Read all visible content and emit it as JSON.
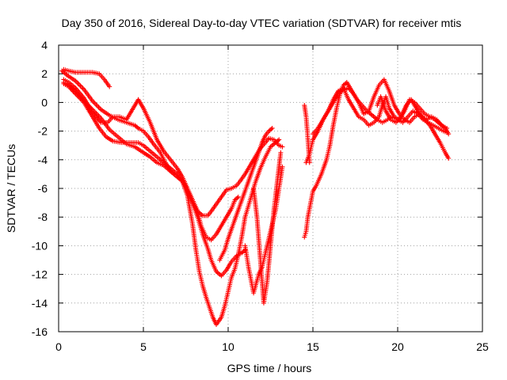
{
  "chart_data": {
    "type": "scatter",
    "title": "Day 350 of 2016, Sidereal Day-to-day VTEC variation (SDTVAR) for receiver mtis",
    "xlabel": "GPS time / hours",
    "ylabel": "SDTVAR / TECUs",
    "xlim": [
      0,
      25
    ],
    "ylim": [
      -16,
      4
    ],
    "xticks": [
      0,
      5,
      10,
      15,
      20,
      25
    ],
    "yticks": [
      4,
      2,
      0,
      -2,
      -4,
      -6,
      -8,
      -10,
      -12,
      -14,
      -16
    ],
    "grid": true,
    "marker": "+",
    "color": "#ff0000",
    "series": [
      {
        "x": [
          0.3,
          0.6,
          1.0,
          1.5,
          2.0,
          2.4,
          2.7,
          3.0
        ],
        "y": [
          2.3,
          2.2,
          2.1,
          2.1,
          2.1,
          2.0,
          1.6,
          1.1
        ]
      },
      {
        "x": [
          0.2,
          0.5,
          1.0,
          1.5,
          2.0,
          2.5,
          3.0,
          3.5,
          4.0,
          4.5,
          4.7,
          5.0,
          5.3,
          5.6,
          6.0,
          6.3,
          6.6,
          7.0,
          7.3,
          7.6,
          7.9,
          8.2,
          8.5,
          8.8,
          9.0,
          9.3,
          9.6,
          9.9,
          10.2,
          10.5,
          10.7,
          11.0,
          11.3,
          11.6,
          11.9,
          12.2,
          12.4,
          12.7,
          13.0,
          13.2
        ],
        "y": [
          2.2,
          1.9,
          1.5,
          0.9,
          0.1,
          -0.5,
          -0.9,
          -1.2,
          -1.4,
          -1.6,
          -1.8,
          -2.0,
          -2.4,
          -2.9,
          -3.5,
          -4.2,
          -4.8,
          -5.2,
          -5.5,
          -6.2,
          -7.0,
          -7.6,
          -7.9,
          -7.9,
          -7.6,
          -7.1,
          -6.6,
          -6.1,
          -6.0,
          -5.8,
          -5.5,
          -5.0,
          -4.4,
          -3.8,
          -3.2,
          -2.8,
          -2.5,
          -2.6,
          -3.0,
          -3.1
        ]
      },
      {
        "x": [
          0.3,
          0.6,
          1.0,
          1.5,
          2.0,
          2.5,
          2.9,
          3.2,
          3.6,
          4.0,
          4.3,
          4.7,
          5.0,
          5.4,
          5.8,
          6.2,
          6.6,
          7.0,
          7.3,
          7.6,
          7.9,
          8.2,
          8.4,
          8.7,
          9.0,
          9.3,
          9.6,
          9.9,
          10.2,
          10.4,
          10.6
        ],
        "y": [
          1.6,
          1.4,
          1.0,
          0.3,
          -0.7,
          -1.4,
          -1.4,
          -1.0,
          -1.0,
          -1.2,
          -0.6,
          0.2,
          -0.4,
          -1.4,
          -2.6,
          -3.4,
          -4.0,
          -4.6,
          -5.2,
          -6.0,
          -6.8,
          -7.6,
          -8.6,
          -9.4,
          -9.6,
          -9.2,
          -8.6,
          -8.0,
          -7.4,
          -6.8,
          -6.6
        ]
      },
      {
        "x": [
          0.3,
          0.6,
          1.0,
          1.5,
          2.0,
          2.5,
          3.0,
          3.5,
          4.0,
          4.5,
          5.0,
          5.4,
          5.8,
          6.2,
          6.6,
          7.0,
          7.3,
          7.6,
          7.9,
          8.2,
          8.5,
          8.8,
          9.0,
          9.3,
          9.6,
          9.9,
          10.2,
          10.5,
          10.8,
          11.0
        ],
        "y": [
          1.4,
          1.2,
          0.8,
          0.1,
          -0.5,
          -1.1,
          -1.9,
          -2.4,
          -2.9,
          -3.1,
          -3.5,
          -3.8,
          -4.2,
          -4.4,
          -4.8,
          -5.2,
          -5.5,
          -6.0,
          -7.0,
          -8.0,
          -9.2,
          -10.2,
          -11.0,
          -11.8,
          -12.1,
          -11.7,
          -11.1,
          -10.7,
          -10.5,
          -10.3
        ]
      },
      {
        "x": [
          0.3,
          0.6,
          1.0,
          1.5,
          2.0,
          2.4,
          2.8,
          3.2,
          3.7,
          4.2,
          4.7,
          5.0,
          5.4,
          5.8,
          6.2,
          6.6,
          7.0,
          7.3,
          7.6,
          7.9,
          8.1,
          8.3,
          8.5,
          8.7,
          8.9,
          9.1,
          9.3,
          9.6,
          9.8,
          10.0,
          10.2,
          10.4,
          10.6,
          10.8,
          11.0,
          11.3,
          11.6,
          11.9,
          12.2,
          12.5,
          12.8,
          13.0
        ],
        "y": [
          1.3,
          1.1,
          0.6,
          0.0,
          -1.0,
          -1.8,
          -2.4,
          -2.7,
          -2.8,
          -2.8,
          -2.8,
          -3.0,
          -3.4,
          -3.8,
          -4.2,
          -4.6,
          -5.0,
          -5.5,
          -6.5,
          -8.5,
          -10.3,
          -11.8,
          -12.8,
          -13.6,
          -14.3,
          -15.0,
          -15.5,
          -15.0,
          -14.2,
          -13.2,
          -12.2,
          -11.6,
          -10.6,
          -9.4,
          -8.0,
          -6.8,
          -5.6,
          -4.6,
          -3.8,
          -3.1,
          -2.8,
          -2.6
        ]
      },
      {
        "x": [
          11.0,
          11.2,
          11.5,
          11.8,
          12.0,
          12.2,
          12.5,
          12.8,
          13.0,
          13.2
        ],
        "y": [
          -10.0,
          -11.5,
          -13.3,
          -12.0,
          -11.5,
          -10.5,
          -9.0,
          -7.5,
          -6.0,
          -4.5
        ]
      },
      {
        "x": [
          9.5,
          9.8,
          10.0,
          10.3,
          10.6,
          10.9,
          11.2,
          11.5,
          11.8,
          12.0,
          12.2,
          12.4,
          12.6
        ],
        "y": [
          -11.0,
          -10.3,
          -9.5,
          -8.5,
          -7.5,
          -6.5,
          -5.5,
          -4.5,
          -3.5,
          -2.8,
          -2.3,
          -2.0,
          -1.8
        ]
      },
      {
        "x": [
          11.5,
          11.7,
          11.9,
          12.1,
          12.3,
          12.5,
          12.7,
          12.9,
          13.1
        ],
        "y": [
          -6.0,
          -8.0,
          -11.0,
          -14.0,
          -12.5,
          -10.0,
          -7.5,
          -5.5,
          -3.5
        ]
      },
      {
        "x": [
          14.5,
          14.6,
          14.7,
          14.8,
          14.9,
          15.0,
          15.2,
          15.5,
          15.8,
          16.0,
          16.2,
          16.4,
          16.6,
          16.8,
          17.0,
          17.3,
          17.6,
          17.9,
          18.2,
          18.5,
          18.8,
          19.1,
          19.4,
          19.7,
          20.0,
          20.3,
          20.6,
          20.9,
          21.2,
          21.5,
          21.8,
          22.1,
          22.4,
          22.7,
          22.9
        ],
        "y": [
          -9.4,
          -9.0,
          -8.0,
          -7.4,
          -6.8,
          -6.2,
          -5.8,
          -5.0,
          -4.0,
          -3.0,
          -1.6,
          -0.4,
          0.6,
          1.2,
          1.4,
          0.8,
          0.2,
          -0.2,
          -0.6,
          -0.9,
          -1.2,
          -1.4,
          -1.2,
          -1.0,
          -1.2,
          -1.4,
          -1.0,
          -0.6,
          -0.8,
          -1.2,
          -1.4,
          -1.6,
          -1.8,
          -2.0,
          -2.1
        ]
      },
      {
        "x": [
          14.6,
          14.8,
          15.0,
          15.3,
          15.6,
          15.9,
          16.2,
          16.5,
          16.8,
          17.1,
          17.4,
          17.7,
          18.0,
          18.3,
          18.6,
          18.9,
          19.2,
          19.5,
          19.8,
          20.1,
          20.4,
          20.7,
          21.0,
          21.3,
          21.6,
          21.9,
          22.2,
          22.5,
          22.8,
          23.0
        ],
        "y": [
          -4.2,
          -3.6,
          -2.6,
          -2.0,
          -1.2,
          -0.6,
          0.0,
          0.6,
          0.9,
          1.0,
          0.6,
          0.0,
          -0.8,
          -0.6,
          0.4,
          1.2,
          1.6,
          0.8,
          -0.2,
          -0.8,
          -1.2,
          -1.4,
          -1.0,
          -0.8,
          -1.2,
          -1.6,
          -2.2,
          -2.8,
          -3.5,
          -3.9
        ]
      },
      {
        "x": [
          15.0,
          15.3,
          15.6,
          15.9,
          16.2,
          16.5,
          16.8,
          17.1,
          17.4,
          17.7,
          18.0,
          18.3,
          18.6,
          18.9,
          19.1,
          19.3,
          19.5,
          19.8,
          20.1,
          20.4,
          20.7,
          21.0,
          21.3,
          21.6,
          21.9,
          22.2,
          22.5,
          22.8,
          23.0
        ],
        "y": [
          -2.2,
          -1.8,
          -1.2,
          -0.6,
          0.2,
          0.8,
          1.0,
          0.2,
          -0.4,
          -1.0,
          -1.2,
          -1.6,
          -1.4,
          -1.0,
          -0.2,
          0.4,
          -0.4,
          -1.0,
          -1.2,
          -0.6,
          0.2,
          0.0,
          -0.4,
          -0.8,
          -1.0,
          -1.2,
          -1.5,
          -1.8,
          -2.2
        ]
      },
      {
        "x": [
          18.8,
          19.0,
          19.3,
          19.6,
          19.9,
          20.2,
          20.5,
          20.8,
          21.1,
          21.4,
          21.7,
          22.0,
          22.3,
          22.6,
          22.9
        ],
        "y": [
          -0.2,
          0.4,
          -0.6,
          -1.2,
          -1.4,
          -1.0,
          -0.2,
          0.2,
          -0.4,
          -1.0,
          -1.2,
          -1.0,
          -1.2,
          -1.6,
          -1.8
        ]
      },
      {
        "x": [
          14.5,
          14.6,
          14.7,
          14.8
        ],
        "y": [
          -0.2,
          -1.0,
          -2.5,
          -4.2
        ]
      }
    ]
  }
}
